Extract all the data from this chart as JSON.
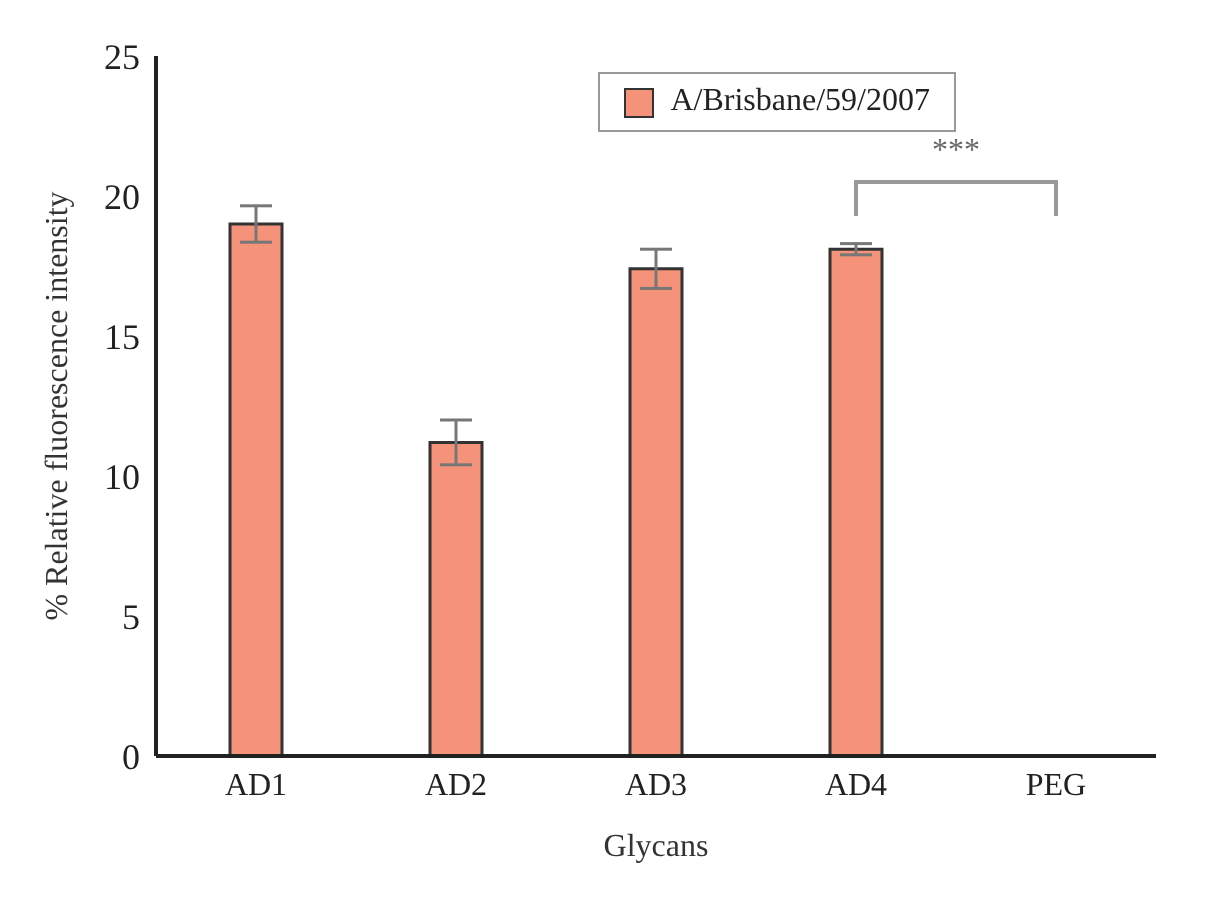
{
  "chart_data": {
    "type": "bar",
    "xlabel": "Glycans",
    "ylabel": "% Relative fluorescence intensity",
    "categories": [
      "AD1",
      "AD2",
      "AD3",
      "AD4",
      "PEG"
    ],
    "series": [
      {
        "name": "A/Brisbane/59/2007",
        "color": "#f4937a",
        "values": [
          19.0,
          11.2,
          17.4,
          18.1,
          0
        ],
        "errors": [
          0.65,
          0.8,
          0.7,
          0.2,
          null
        ]
      }
    ],
    "ylim": [
      0,
      25
    ],
    "yticks": [
      0,
      5,
      10,
      15,
      20,
      25
    ],
    "grid": false,
    "legend": "top right",
    "annotations": [
      "***"
    ]
  }
}
